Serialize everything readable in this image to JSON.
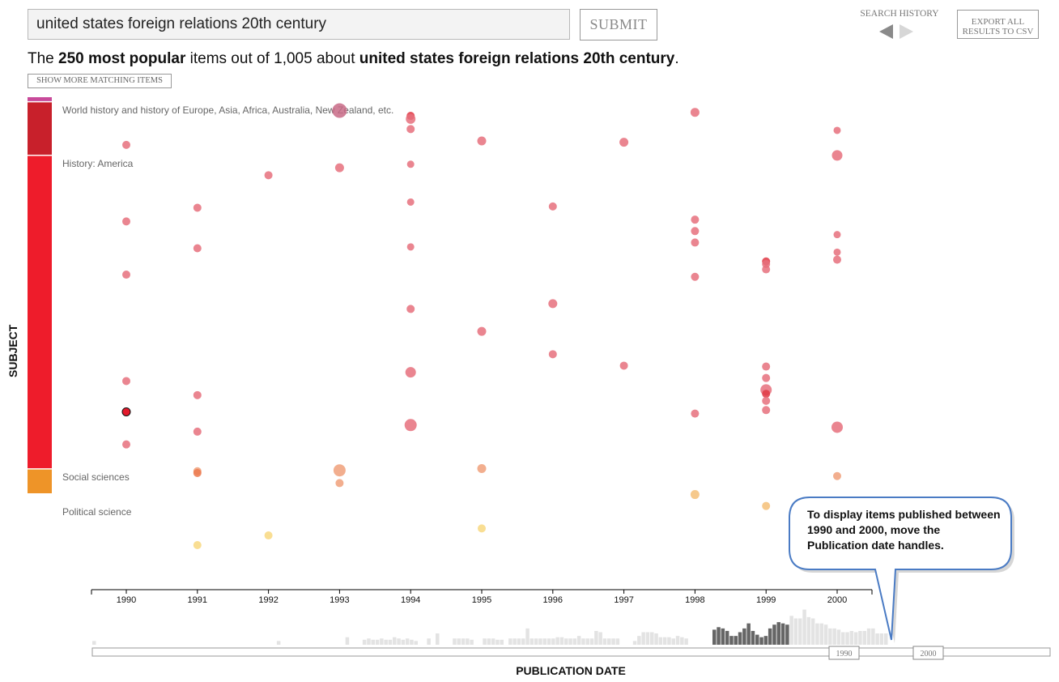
{
  "search": {
    "value": "united states foreign relations 20th century",
    "submit_label": "SUBMIT"
  },
  "history": {
    "label": "SEARCH HISTORY"
  },
  "export": {
    "label": "EXPORT ALL RESULTS TO CSV"
  },
  "headline": {
    "prefix": "The ",
    "count_phrase": "250 most popular",
    "middle": " items out of 1,005 about ",
    "query": "united states foreign relations 20th century",
    "suffix": "."
  },
  "show_more_label": "SHOW MORE MATCHING ITEMS",
  "colors": {
    "world_history": "#c8202b",
    "history_america": "#ee1c2b",
    "social_sciences": "#ee9428",
    "top_band": "#c84a9a",
    "selected_stroke": "#111111",
    "histogram_light": "#e3e3e3",
    "histogram_dark": "#666666",
    "callout_border": "#4a7bc4"
  },
  "chart_data": {
    "type": "scatter",
    "xlabel": "PUBLICATION DATE",
    "ylabel": "SUBJECT",
    "x_ticks": [
      1990,
      1991,
      1992,
      1993,
      1994,
      1995,
      1996,
      1997,
      1998,
      1999,
      2000
    ],
    "subject_categories": [
      {
        "label": "",
        "color": "#c84a9a",
        "share": 0.012
      },
      {
        "label": "World history and history of Europe, Asia, Africa, Australia, New Zealand, etc.",
        "color": "#c8202b",
        "share": 0.135
      },
      {
        "label": "History: America",
        "color": "#ee1c2b",
        "share": 0.79
      },
      {
        "label": "Social sciences",
        "color": "#ee9428",
        "share": 0.063
      },
      {
        "label": "Political science",
        "color": "#ee9428",
        "share": 0
      }
    ],
    "points": [
      {
        "year": 1990,
        "subject_pos": 0.09,
        "size": 5,
        "color": "#e6707d"
      },
      {
        "year": 1990,
        "subject_pos": 0.264,
        "size": 5,
        "color": "#e6707d"
      },
      {
        "year": 1990,
        "subject_pos": 0.385,
        "size": 5,
        "color": "#e6707d"
      },
      {
        "year": 1990,
        "subject_pos": 0.627,
        "size": 5,
        "color": "#e6707d"
      },
      {
        "year": 1990,
        "subject_pos": 0.697,
        "size": 5,
        "color": "#e31a2c",
        "selected": true
      },
      {
        "year": 1990,
        "subject_pos": 0.771,
        "size": 5,
        "color": "#e6707d"
      },
      {
        "year": 1991,
        "subject_pos": 0.233,
        "size": 5,
        "color": "#e6707d"
      },
      {
        "year": 1991,
        "subject_pos": 0.325,
        "size": 5,
        "color": "#e6707d"
      },
      {
        "year": 1991,
        "subject_pos": 0.659,
        "size": 5,
        "color": "#e6707d"
      },
      {
        "year": 1991,
        "subject_pos": 0.742,
        "size": 5,
        "color": "#e6707d"
      },
      {
        "year": 1991,
        "subject_pos": 0.832,
        "size": 5,
        "color": "#f0a07a"
      },
      {
        "year": 1991,
        "subject_pos": 0.836,
        "size": 5,
        "color": "#ec7a50"
      },
      {
        "year": 1991,
        "subject_pos": 1.0,
        "size": 5,
        "color": "#f8d880"
      },
      {
        "year": 1992,
        "subject_pos": 0.159,
        "size": 5,
        "color": "#e6707d"
      },
      {
        "year": 1992,
        "subject_pos": 0.978,
        "size": 5,
        "color": "#f8d880"
      },
      {
        "year": 1993,
        "subject_pos": 0.012,
        "size": 9,
        "color": "#c86a86"
      },
      {
        "year": 1993,
        "subject_pos": 0.142,
        "size": 5.5,
        "color": "#e6707d"
      },
      {
        "year": 1993,
        "subject_pos": 0.83,
        "size": 7.5,
        "color": "#f0a07a"
      },
      {
        "year": 1993,
        "subject_pos": 0.859,
        "size": 5,
        "color": "#f0a07a"
      },
      {
        "year": 1994,
        "subject_pos": 0.024,
        "size": 5,
        "color": "#e03a45"
      },
      {
        "year": 1994,
        "subject_pos": 0.031,
        "size": 6,
        "color": "#e6707d"
      },
      {
        "year": 1994,
        "subject_pos": 0.054,
        "size": 5,
        "color": "#e6707d"
      },
      {
        "year": 1994,
        "subject_pos": 0.134,
        "size": 4.5,
        "color": "#e6707d"
      },
      {
        "year": 1994,
        "subject_pos": 0.22,
        "size": 4.5,
        "color": "#e6707d"
      },
      {
        "year": 1994,
        "subject_pos": 0.322,
        "size": 4.5,
        "color": "#e6707d"
      },
      {
        "year": 1994,
        "subject_pos": 0.463,
        "size": 5,
        "color": "#e6707d"
      },
      {
        "year": 1994,
        "subject_pos": 0.607,
        "size": 6.5,
        "color": "#e6707d"
      },
      {
        "year": 1994,
        "subject_pos": 0.727,
        "size": 7.5,
        "color": "#e6707d"
      },
      {
        "year": 1995,
        "subject_pos": 0.081,
        "size": 5.5,
        "color": "#e6707d"
      },
      {
        "year": 1995,
        "subject_pos": 0.514,
        "size": 5.5,
        "color": "#e6707d"
      },
      {
        "year": 1995,
        "subject_pos": 0.826,
        "size": 5.5,
        "color": "#f0a07a"
      },
      {
        "year": 1995,
        "subject_pos": 0.962,
        "size": 5,
        "color": "#f8d880"
      },
      {
        "year": 1996,
        "subject_pos": 0.23,
        "size": 5,
        "color": "#e6707d"
      },
      {
        "year": 1996,
        "subject_pos": 0.451,
        "size": 5.5,
        "color": "#e6707d"
      },
      {
        "year": 1996,
        "subject_pos": 0.566,
        "size": 5,
        "color": "#e6707d"
      },
      {
        "year": 1997,
        "subject_pos": 0.084,
        "size": 5.5,
        "color": "#e6707d"
      },
      {
        "year": 1997,
        "subject_pos": 0.592,
        "size": 5,
        "color": "#e6707d"
      },
      {
        "year": 1998,
        "subject_pos": 0.016,
        "size": 5.5,
        "color": "#e6707d"
      },
      {
        "year": 1998,
        "subject_pos": 0.26,
        "size": 5,
        "color": "#e6707d"
      },
      {
        "year": 1998,
        "subject_pos": 0.286,
        "size": 5,
        "color": "#e6707d"
      },
      {
        "year": 1998,
        "subject_pos": 0.312,
        "size": 5,
        "color": "#e6707d"
      },
      {
        "year": 1998,
        "subject_pos": 0.39,
        "size": 5,
        "color": "#e6707d"
      },
      {
        "year": 1998,
        "subject_pos": 0.701,
        "size": 5,
        "color": "#e6707d"
      },
      {
        "year": 1998,
        "subject_pos": 0.885,
        "size": 5.5,
        "color": "#f5c078"
      },
      {
        "year": 1999,
        "subject_pos": 0.355,
        "size": 5,
        "color": "#e03a45"
      },
      {
        "year": 1999,
        "subject_pos": 0.361,
        "size": 5,
        "color": "#e6707d"
      },
      {
        "year": 1999,
        "subject_pos": 0.373,
        "size": 5,
        "color": "#e6707d"
      },
      {
        "year": 1999,
        "subject_pos": 0.594,
        "size": 5,
        "color": "#e6707d"
      },
      {
        "year": 1999,
        "subject_pos": 0.62,
        "size": 5,
        "color": "#e6707d"
      },
      {
        "year": 1999,
        "subject_pos": 0.647,
        "size": 7,
        "color": "#e6707d"
      },
      {
        "year": 1999,
        "subject_pos": 0.656,
        "size": 5,
        "color": "#e03a45"
      },
      {
        "year": 1999,
        "subject_pos": 0.672,
        "size": 5,
        "color": "#e6707d"
      },
      {
        "year": 1999,
        "subject_pos": 0.693,
        "size": 5,
        "color": "#e6707d"
      },
      {
        "year": 1999,
        "subject_pos": 0.911,
        "size": 5,
        "color": "#f5c078"
      },
      {
        "year": 2000,
        "subject_pos": 0.057,
        "size": 4.5,
        "color": "#e6707d"
      },
      {
        "year": 2000,
        "subject_pos": 0.114,
        "size": 6.5,
        "color": "#e6707d"
      },
      {
        "year": 2000,
        "subject_pos": 0.294,
        "size": 4.5,
        "color": "#e6707d"
      },
      {
        "year": 2000,
        "subject_pos": 0.334,
        "size": 4.5,
        "color": "#e6707d"
      },
      {
        "year": 2000,
        "subject_pos": 0.351,
        "size": 5,
        "color": "#e6707d"
      },
      {
        "year": 2000,
        "subject_pos": 0.732,
        "size": 7,
        "color": "#e6707d"
      },
      {
        "year": 2000,
        "subject_pos": 0.843,
        "size": 5,
        "color": "#f0a07a"
      }
    ],
    "histogram": {
      "selected_range": [
        1990,
        2000
      ],
      "counts_light_before": [
        3,
        0,
        0,
        0,
        0,
        0,
        0,
        0,
        0,
        0,
        0,
        0,
        0,
        0,
        0,
        0,
        0,
        0,
        0,
        0,
        0,
        0,
        0,
        0,
        0,
        0,
        0,
        0,
        0,
        0,
        0,
        0,
        0,
        0,
        0,
        0,
        0,
        0,
        0,
        0,
        0,
        0,
        0,
        3,
        0,
        0,
        0,
        0,
        0,
        0,
        0,
        0,
        0,
        0,
        0,
        0,
        0,
        0,
        0,
        6,
        0,
        0,
        0,
        4,
        5,
        4,
        4,
        5,
        4,
        4,
        6,
        5,
        4,
        5,
        4,
        3,
        0,
        0,
        5,
        0,
        9,
        0,
        0,
        0,
        5,
        5,
        5,
        5,
        4,
        0,
        0,
        5,
        5,
        5,
        4,
        4,
        0,
        5,
        5,
        5,
        5,
        13,
        5,
        5,
        5,
        5,
        5,
        5,
        6,
        6,
        5,
        5,
        5,
        7,
        5,
        5,
        5,
        11,
        10,
        5,
        5,
        5,
        5,
        0,
        0,
        0,
        3,
        7,
        10,
        10,
        10,
        9,
        6,
        6,
        6,
        5,
        7,
        6,
        5
      ],
      "counts_selected": [
        12,
        14,
        13,
        11,
        7,
        7,
        10,
        13,
        17,
        11,
        8,
        6,
        7,
        13,
        16,
        18,
        17,
        16,
        23,
        21,
        21,
        28,
        22,
        21,
        17,
        17,
        16,
        13,
        13,
        12,
        10,
        10,
        11,
        10,
        11,
        11,
        13,
        13,
        9,
        9,
        9
      ],
      "handle_start_label": "1990",
      "handle_end_label": "2000"
    }
  },
  "callout": {
    "text": "To display items published between 1990 and 2000, move the Publication date handles."
  }
}
